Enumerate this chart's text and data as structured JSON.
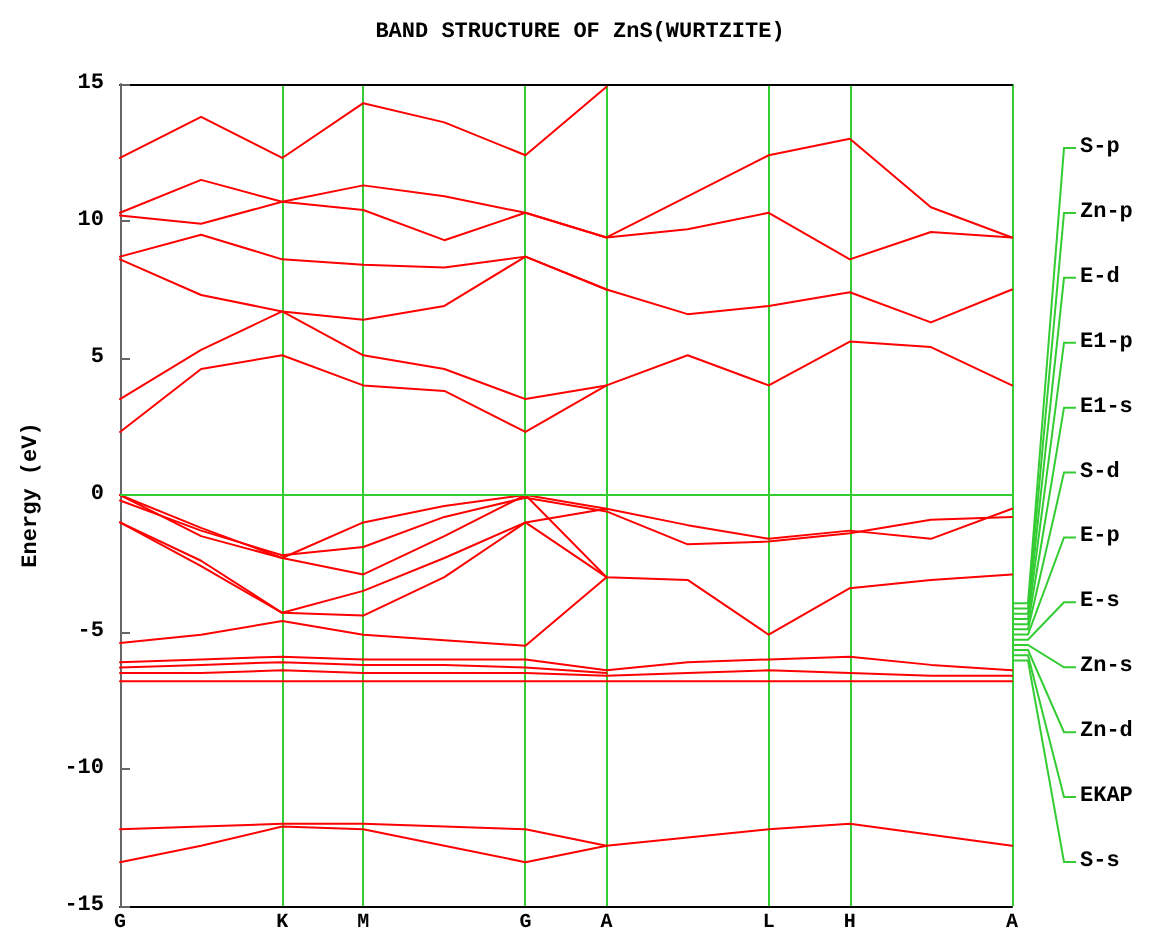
{
  "chart_data": {
    "type": "line",
    "title": "BAND STRUCTURE OF ZnS(WURTZITE)",
    "ylabel": "Energy (eV)",
    "categories": [
      "G",
      null,
      "K",
      "M",
      null,
      "G",
      "A",
      null,
      "L",
      "H",
      null,
      "A"
    ],
    "ylim": [
      -15,
      15
    ],
    "yticks": [
      -15,
      -10,
      -5,
      0,
      5,
      10,
      15
    ],
    "grid": "x",
    "marker": "none",
    "line_style": "solid",
    "ref_lines": [
      {
        "axis": "y",
        "value": 0,
        "color": "#33cc33"
      }
    ],
    "series": [
      {
        "color": "#ff0000",
        "values": [
          2.3,
          4.6,
          5.1,
          4.0,
          3.8,
          2.3,
          4.0,
          5.1,
          4.0,
          5.6,
          5.4,
          4.0
        ]
      },
      {
        "color": "#ff0000",
        "values": [
          3.5,
          5.3,
          6.7,
          5.1,
          4.6,
          3.5,
          4.0,
          null,
          null,
          null,
          null,
          null
        ]
      },
      {
        "color": "#ff0000",
        "values": [
          8.6,
          7.3,
          6.7,
          6.4,
          6.9,
          8.7,
          7.5,
          6.6,
          6.9,
          7.4,
          6.3,
          7.5
        ]
      },
      {
        "color": "#ff0000",
        "values": [
          8.7,
          9.5,
          8.6,
          8.4,
          8.3,
          8.7,
          7.5,
          null,
          null,
          null,
          null,
          null
        ]
      },
      {
        "color": "#ff0000",
        "values": [
          10.2,
          9.9,
          10.7,
          10.4,
          9.3,
          10.3,
          9.4,
          9.7,
          10.3,
          8.6,
          9.6,
          9.4
        ]
      },
      {
        "color": "#ff0000",
        "values": [
          10.3,
          11.5,
          10.7,
          11.3,
          10.9,
          10.3,
          9.4,
          null,
          null,
          null,
          null,
          null
        ]
      },
      {
        "color": "#ff0000",
        "values": [
          12.3,
          13.8,
          12.3,
          14.3,
          13.6,
          12.4,
          14.9,
          null,
          null,
          null,
          null,
          null
        ]
      },
      {
        "color": "#ff0000",
        "values": [
          null,
          null,
          null,
          null,
          null,
          null,
          9.4,
          10.9,
          12.4,
          13.0,
          10.5,
          9.4
        ]
      },
      {
        "color": "#ff0000",
        "values": [
          0,
          -1.2,
          -2.3,
          -1.0,
          -0.4,
          0,
          -0.5,
          -1.1,
          -1.6,
          -1.3,
          -1.6,
          -0.5
        ]
      },
      {
        "color": "#ff0000",
        "values": [
          -0.2,
          -1.3,
          -2.2,
          -1.9,
          -0.8,
          -0.1,
          -0.6,
          -1.8,
          -1.7,
          -1.4,
          -0.9,
          -0.8
        ]
      },
      {
        "color": "#ff0000",
        "values": [
          0,
          -1.5,
          -2.3,
          -2.9,
          -1.5,
          0,
          -3.0,
          null,
          null,
          null,
          null,
          null
        ]
      },
      {
        "color": "#ff0000",
        "values": [
          -1.0,
          -2.4,
          -4.3,
          -3.5,
          -2.3,
          -1.0,
          -3.0,
          -3.1,
          -5.1,
          -3.4,
          -3.1,
          -2.9
        ]
      },
      {
        "color": "#ff0000",
        "values": [
          -1.0,
          -2.6,
          -4.3,
          -4.4,
          -3.0,
          -1.0,
          -0.5,
          null,
          null,
          null,
          null,
          null
        ]
      },
      {
        "color": "#ff0000",
        "values": [
          -5.4,
          -5.1,
          -4.6,
          -5.1,
          -5.3,
          -5.5,
          -3.0,
          null,
          null,
          null,
          null,
          null
        ]
      },
      {
        "color": "#ff0000",
        "values": [
          -6.1,
          -6.0,
          -5.9,
          -6.0,
          -6.0,
          -6.0,
          -6.4,
          -6.1,
          -6.0,
          -5.9,
          -6.2,
          -6.4
        ]
      },
      {
        "color": "#ff0000",
        "values": [
          -6.3,
          -6.2,
          -6.1,
          -6.2,
          -6.2,
          -6.3,
          -6.5,
          null,
          null,
          null,
          null,
          null
        ]
      },
      {
        "color": "#ff0000",
        "values": [
          -6.5,
          -6.5,
          -6.4,
          -6.5,
          -6.5,
          -6.5,
          -6.6,
          -6.5,
          -6.4,
          -6.5,
          -6.6,
          -6.6
        ]
      },
      {
        "color": "#ff0000",
        "values": [
          -6.8,
          -6.8,
          -6.8,
          -6.8,
          -6.8,
          -6.8,
          -6.8,
          -6.8,
          -6.8,
          -6.8,
          -6.8,
          -6.8
        ]
      },
      {
        "color": "#ff0000",
        "values": [
          -12.2,
          -12.1,
          -12.0,
          -12.0,
          -12.1,
          -12.2,
          -12.8,
          -12.5,
          -12.2,
          -12.0,
          -12.4,
          -12.8
        ]
      },
      {
        "color": "#ff0000",
        "values": [
          -13.4,
          -12.8,
          -12.1,
          -12.2,
          -12.8,
          -13.4,
          -12.8,
          null,
          null,
          null,
          null,
          null
        ]
      }
    ],
    "annotations": [
      "S-p",
      "Zn-p",
      "E-d",
      "E1-p",
      "E1-s",
      "S-d",
      "E-p",
      "E-s",
      "Zn-s",
      "Zn-d",
      "EKAP",
      "S-s"
    ]
  }
}
